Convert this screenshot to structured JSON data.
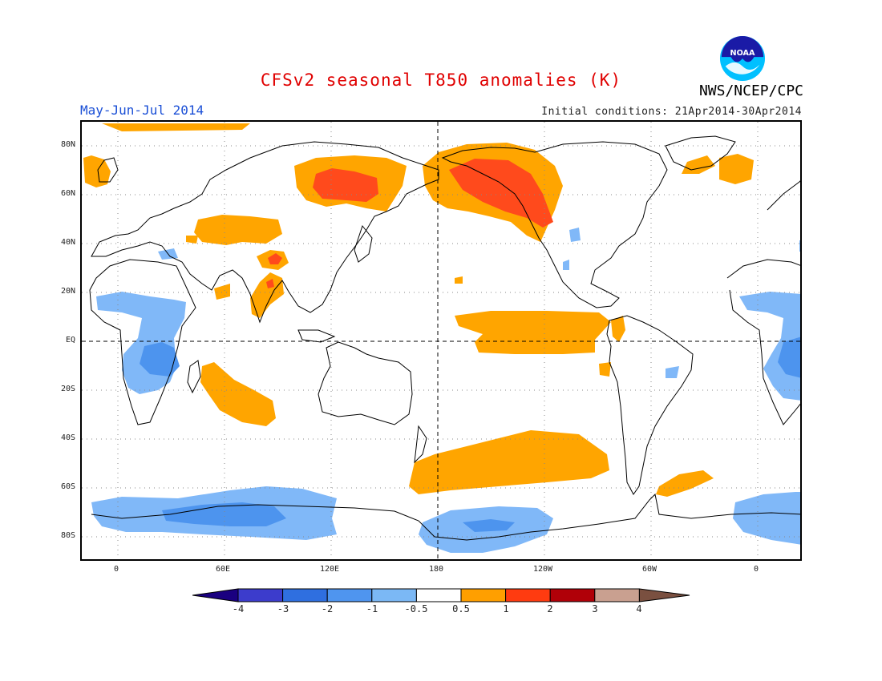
{
  "title": "CFSv2 seasonal T850 anomalies (K)",
  "season": "May-Jun-Jul 2014",
  "initial_conditions": "Initial conditions: 21Apr2014-30Apr2014",
  "agency": "NWS/NCEP/CPC",
  "logo_text": "NOAA",
  "lat_labels": [
    "80N",
    "60N",
    "40N",
    "20N",
    "EQ",
    "20S",
    "40S",
    "60S",
    "80S"
  ],
  "lon_labels": [
    "0",
    "60E",
    "120E",
    "180",
    "120W",
    "60W",
    "0"
  ],
  "colorbar": {
    "labels": [
      "-4",
      "-3",
      "-2",
      "-1",
      "-0.5",
      "0.5",
      "1",
      "2",
      "3",
      "4"
    ],
    "colors": [
      "#1a0080",
      "#3c3ccc",
      "#2f6fe0",
      "#4f95ef",
      "#7bb8f5",
      "#ffffff",
      "#ff9f00",
      "#ff3b10",
      "#b00008",
      "#c9a090",
      "#7a5040"
    ]
  },
  "colors": {
    "warm_light": "#ffa500",
    "warm_mid": "#ff4a1c",
    "cool_light": "#80b8f8",
    "cool_mid": "#4d94ee",
    "title": "#e00000",
    "season": "#1a4fd6"
  }
}
